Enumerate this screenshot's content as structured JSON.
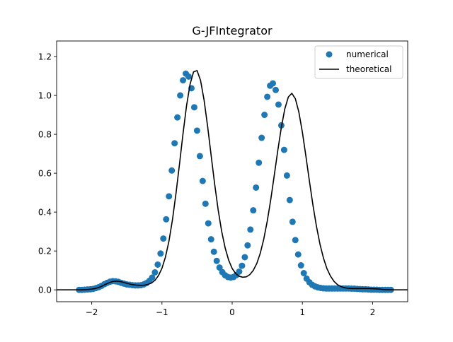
{
  "chart_data": {
    "type": "line",
    "title": "G-JFIntegrator",
    "xlabel": "",
    "ylabel": "",
    "xlim": [
      -2.5,
      2.5
    ],
    "ylim": [
      -0.061,
      1.28
    ],
    "xticks": [
      -2,
      -1,
      0,
      1,
      2
    ],
    "xtick_labels": [
      "−2",
      "−1",
      "0",
      "1",
      "2"
    ],
    "yticks": [
      0.0,
      0.2,
      0.4,
      0.6,
      0.8,
      1.0,
      1.2
    ],
    "ytick_labels": [
      "0.0",
      "0.2",
      "0.4",
      "0.6",
      "0.8",
      "1.0",
      "1.2"
    ],
    "grid": false,
    "legend": {
      "position": "top-right",
      "entries": [
        "numerical",
        "theoretical"
      ]
    },
    "series": [
      {
        "name": "numerical",
        "style": "markers",
        "color": "#1f77b4",
        "x": [
          -2.18,
          -2.14,
          -2.1,
          -2.06,
          -2.02,
          -1.98,
          -1.94,
          -1.9,
          -1.86,
          -1.82,
          -1.78,
          -1.74,
          -1.7,
          -1.66,
          -1.62,
          -1.58,
          -1.54,
          -1.5,
          -1.46,
          -1.42,
          -1.38,
          -1.34,
          -1.3,
          -1.26,
          -1.22,
          -1.18,
          -1.14,
          -1.1,
          -1.06,
          -1.02,
          -0.98,
          -0.94,
          -0.9,
          -0.86,
          -0.82,
          -0.78,
          -0.74,
          -0.7,
          -0.66,
          -0.62,
          -0.58,
          -0.54,
          -0.5,
          -0.46,
          -0.42,
          -0.38,
          -0.34,
          -0.3,
          -0.26,
          -0.22,
          -0.18,
          -0.14,
          -0.1,
          -0.06,
          -0.02,
          0.02,
          0.06,
          0.1,
          0.14,
          0.18,
          0.22,
          0.26,
          0.3,
          0.34,
          0.38,
          0.42,
          0.46,
          0.5,
          0.54,
          0.58,
          0.62,
          0.66,
          0.7,
          0.74,
          0.78,
          0.82,
          0.86,
          0.9,
          0.94,
          0.98,
          1.02,
          1.06,
          1.1,
          1.14,
          1.18,
          1.22,
          1.26,
          1.3,
          1.34,
          1.38,
          1.42,
          1.46,
          1.5,
          1.54,
          1.58,
          1.62,
          1.66,
          1.7,
          1.74,
          1.78,
          1.82,
          1.86,
          1.9,
          1.94,
          1.98,
          2.02,
          2.06,
          2.1,
          2.14,
          2.18,
          2.22,
          2.26
        ],
        "y": [
          0.0,
          0.0,
          0.001,
          0.002,
          0.003,
          0.005,
          0.009,
          0.014,
          0.021,
          0.029,
          0.036,
          0.042,
          0.045,
          0.044,
          0.041,
          0.036,
          0.032,
          0.028,
          0.026,
          0.024,
          0.023,
          0.023,
          0.024,
          0.028,
          0.035,
          0.046,
          0.063,
          0.09,
          0.13,
          0.187,
          0.264,
          0.363,
          0.481,
          0.614,
          0.754,
          0.887,
          1.0,
          1.078,
          1.112,
          1.097,
          1.037,
          0.939,
          0.819,
          0.688,
          0.56,
          0.443,
          0.342,
          0.26,
          0.196,
          0.149,
          0.115,
          0.091,
          0.075,
          0.066,
          0.063,
          0.066,
          0.076,
          0.094,
          0.124,
          0.168,
          0.229,
          0.31,
          0.409,
          0.526,
          0.654,
          0.782,
          0.9,
          0.993,
          1.05,
          1.062,
          1.028,
          0.953,
          0.846,
          0.72,
          0.588,
          0.462,
          0.35,
          0.256,
          0.182,
          0.126,
          0.086,
          0.058,
          0.039,
          0.026,
          0.018,
          0.013,
          0.01,
          0.008,
          0.007,
          0.007,
          0.007,
          0.007,
          0.007,
          0.007,
          0.007,
          0.007,
          0.007,
          0.006,
          0.006,
          0.005,
          0.004,
          0.003,
          0.003,
          0.002,
          0.001,
          0.001,
          0.001,
          0.0,
          0.0,
          0.0,
          0.0,
          0.0
        ]
      },
      {
        "name": "theoretical",
        "style": "line",
        "color": "#000000",
        "x": [
          -2.5,
          -2.45,
          -2.4,
          -2.35,
          -2.3,
          -2.25,
          -2.2,
          -2.15,
          -2.1,
          -2.05,
          -2.0,
          -1.95,
          -1.9,
          -1.85,
          -1.8,
          -1.75,
          -1.7,
          -1.65,
          -1.6,
          -1.55,
          -1.5,
          -1.45,
          -1.4,
          -1.35,
          -1.3,
          -1.25,
          -1.2,
          -1.15,
          -1.1,
          -1.05,
          -1.0,
          -0.95,
          -0.9,
          -0.85,
          -0.8,
          -0.75,
          -0.7,
          -0.65,
          -0.6,
          -0.55,
          -0.5,
          -0.45,
          -0.4,
          -0.35,
          -0.3,
          -0.25,
          -0.2,
          -0.15,
          -0.1,
          -0.05,
          0.0,
          0.05,
          0.1,
          0.15,
          0.2,
          0.25,
          0.3,
          0.35,
          0.4,
          0.45,
          0.5,
          0.55,
          0.6,
          0.65,
          0.7,
          0.75,
          0.8,
          0.85,
          0.9,
          0.95,
          1.0,
          1.05,
          1.1,
          1.15,
          1.2,
          1.25,
          1.3,
          1.35,
          1.4,
          1.45,
          1.5,
          1.55,
          1.6,
          1.65,
          1.7,
          1.75,
          1.8,
          1.85,
          1.9,
          1.95,
          2.0,
          2.05,
          2.1,
          2.15,
          2.2,
          2.25,
          2.3,
          2.35,
          2.4,
          2.45,
          2.5
        ],
        "y": [
          0.0,
          0.0,
          0.0,
          0.0,
          0.0,
          0.0,
          0.0,
          0.0,
          0.001,
          0.002,
          0.004,
          0.007,
          0.012,
          0.02,
          0.029,
          0.037,
          0.043,
          0.045,
          0.043,
          0.039,
          0.034,
          0.029,
          0.026,
          0.024,
          0.023,
          0.024,
          0.028,
          0.035,
          0.049,
          0.073,
          0.111,
          0.169,
          0.251,
          0.361,
          0.496,
          0.647,
          0.803,
          0.946,
          1.057,
          1.121,
          1.128,
          1.077,
          0.976,
          0.842,
          0.693,
          0.546,
          0.413,
          0.302,
          0.216,
          0.153,
          0.11,
          0.084,
          0.07,
          0.065,
          0.067,
          0.078,
          0.1,
          0.135,
          0.188,
          0.261,
          0.354,
          0.465,
          0.59,
          0.717,
          0.835,
          0.931,
          0.992,
          1.011,
          0.983,
          0.914,
          0.811,
          0.688,
          0.56,
          0.437,
          0.328,
          0.236,
          0.164,
          0.109,
          0.071,
          0.044,
          0.027,
          0.017,
          0.011,
          0.008,
          0.007,
          0.007,
          0.007,
          0.007,
          0.007,
          0.007,
          0.006,
          0.005,
          0.004,
          0.002,
          0.001,
          0.001,
          0.0,
          0.0,
          0.0,
          0.0,
          0.0
        ]
      }
    ]
  }
}
